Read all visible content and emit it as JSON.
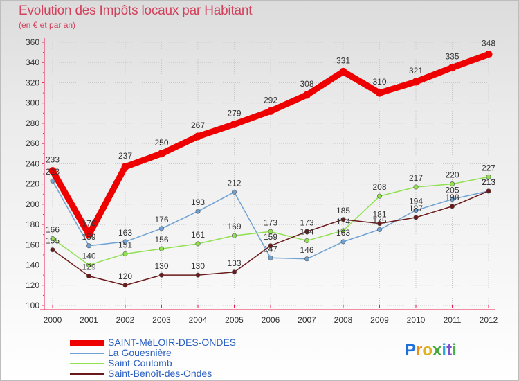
{
  "header": {
    "title": "Evolution des Impôts locaux par Habitant",
    "subtitle": "(en € et par an)"
  },
  "logo": {
    "chars": [
      "P",
      "r",
      "o",
      "x",
      "i",
      "t",
      "i"
    ]
  },
  "colors": {
    "title": "#d3425c",
    "axis": "#ee1c4d",
    "grid": "#c8c8c8",
    "label": "#333333",
    "legend_text": "#2a5fc0",
    "logo": [
      "#1e6fd9",
      "#f28a1a",
      "#e0b01c",
      "#46a83a",
      "#2aa7e0",
      "#7c4fd0",
      "#44b54a"
    ]
  },
  "chart_data": {
    "type": "line",
    "title": "Evolution des Impôts locaux par Habitant",
    "subtitle": "(en € et par an)",
    "xlabel": "",
    "ylabel": "",
    "ylim": [
      100,
      360
    ],
    "ytick_step": 20,
    "grid": true,
    "legend_position": "bottom-left",
    "categories": [
      "2000",
      "2001",
      "2002",
      "2003",
      "2004",
      "2005",
      "2006",
      "2007",
      "2008",
      "2009",
      "2010",
      "2011",
      "2012"
    ],
    "series": [
      {
        "name": "SAINT-MéLOIR-DES-ONDES",
        "color": "#ee0000",
        "width": 9,
        "values": [
          233,
          170,
          237,
          250,
          267,
          279,
          292,
          308,
          331,
          310,
          321,
          335,
          348
        ]
      },
      {
        "name": "La Gouesnière",
        "color": "#6fa2d3",
        "width": 1.5,
        "values": [
          223,
          159,
          163,
          176,
          193,
          212,
          147,
          146,
          163,
          175,
          194,
          205,
          213
        ]
      },
      {
        "name": "Saint-Coulomb",
        "color": "#90e050",
        "width": 1.5,
        "values": [
          166,
          140,
          151,
          156,
          161,
          169,
          173,
          164,
          174,
          208,
          217,
          220,
          227
        ]
      },
      {
        "name": "Saint-Benoît-des-Ondes",
        "color": "#6a1a1a",
        "width": 1.5,
        "values": [
          155,
          129,
          120,
          130,
          130,
          133,
          159,
          173,
          185,
          181,
          187,
          198,
          213
        ]
      }
    ]
  }
}
